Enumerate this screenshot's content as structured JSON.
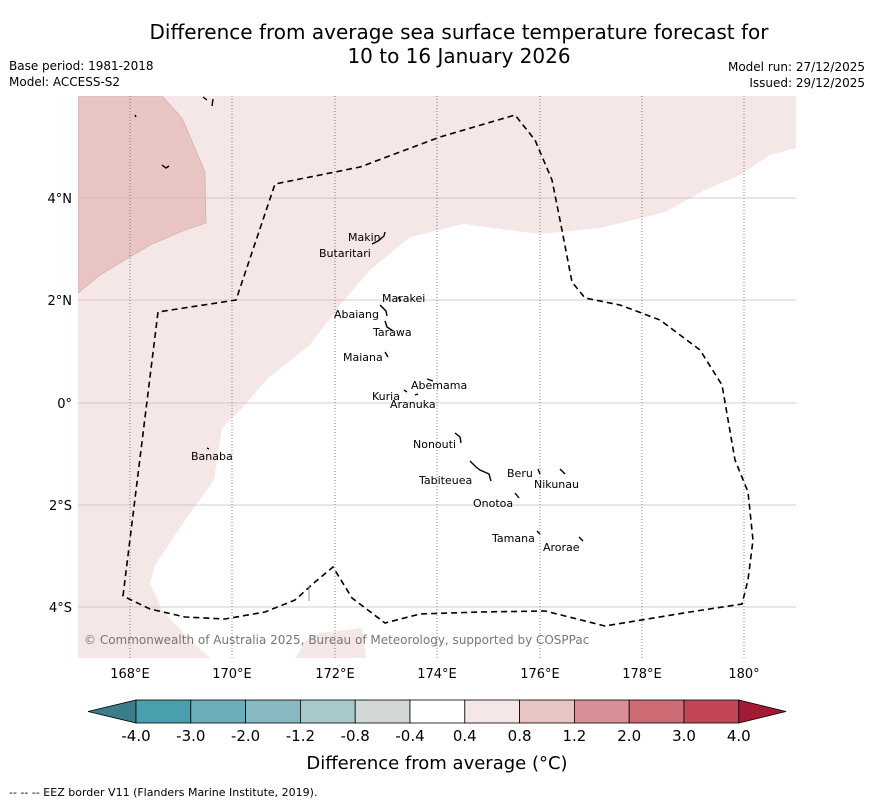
{
  "title_line1": "Difference from average sea surface temperature forecast for",
  "title_line2": "10 to 16 January 2026",
  "base_period": "Base period: 1981-2018",
  "model": "Model: ACCESS-S2",
  "model_run": "Model run: 27/12/2025",
  "issued": "Issued: 29/12/2025",
  "copyright": "© Commonwealth of Australia 2025, Bureau of Meteorology, supported by COSPPac",
  "lon_labels": [
    "168°E",
    "170°E",
    "172°E",
    "174°E",
    "176°E",
    "178°E",
    "180°"
  ],
  "lat_labels": [
    "4°N",
    "2°N",
    "0°",
    "2°S",
    "4°S"
  ],
  "places": {
    "makin": "Makin",
    "butaritari": "Butaritari",
    "marakei": "Marakei",
    "abaiang": "Abaiang",
    "tarawa": "Tarawa",
    "maiana": "Maiana",
    "abemama": "Abemama",
    "kuria": "Kuria",
    "aranuka": "Aranuka",
    "banaba": "Banaba",
    "nonouti": "Nonouti",
    "tabiteuea": "Tabiteuea",
    "beru": "Beru",
    "nikunau": "Nikunau",
    "onotoa": "Onotoa",
    "tamana": "Tamana",
    "arorae": "Arorae"
  },
  "colorbar": {
    "ticks": [
      "-4.0",
      "-3.0",
      "-2.0",
      "-1.2",
      "-0.8",
      "-0.4",
      "0.4",
      "0.8",
      "1.2",
      "2.0",
      "3.0",
      "4.0"
    ],
    "colors": [
      "#4a9fae",
      "#6aaeba",
      "#88b8c2",
      "#a8c8cc",
      "#d3d6d7",
      "#ffffff",
      "#f5e7e6",
      "#e8c5c2",
      "#d98f95",
      "#cd6b74",
      "#c24656"
    ],
    "low_color": "#3a7e8c",
    "high_color": "#a31a35",
    "label": "Difference from average (°C)"
  },
  "legend_text": "-- -- -- EEZ border V11 (Flanders Marine Institute, 2019)."
}
